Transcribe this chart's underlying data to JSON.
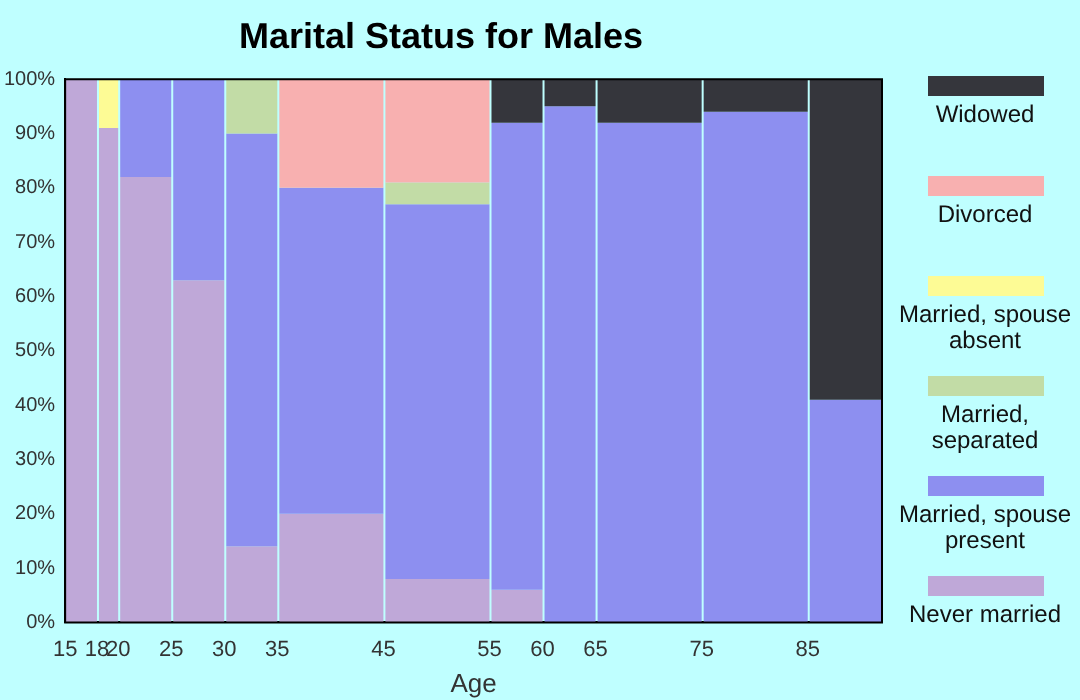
{
  "chart_data": {
    "type": "bar",
    "stacked": true,
    "title": "Marital Status for Males",
    "xlabel": "Age",
    "x": [
      16.5,
      19,
      22.5,
      27.5,
      32.5,
      40,
      50,
      57.5,
      62.5,
      70,
      80,
      88.5
    ],
    "xlim": [
      15,
      92
    ],
    "xticks": [
      15,
      18,
      20,
      25,
      30,
      35,
      45,
      55,
      60,
      65,
      75,
      85
    ],
    "ylim": [
      0,
      100
    ],
    "yticks": [
      {
        "value": 0,
        "label": "0%"
      },
      {
        "value": 10,
        "label": "10%"
      },
      {
        "value": 20,
        "label": "20%"
      },
      {
        "value": 30,
        "label": "30%"
      },
      {
        "value": 40,
        "label": "40%"
      },
      {
        "value": 50,
        "label": "50%"
      },
      {
        "value": 60,
        "label": "60%"
      },
      {
        "value": 70,
        "label": "70%"
      },
      {
        "value": 80,
        "label": "80%"
      },
      {
        "value": 90,
        "label": "90%"
      },
      {
        "value": 100,
        "label": "100%"
      }
    ],
    "legend": "right",
    "series": [
      {
        "name": "Never married",
        "color": "#bfa8d8",
        "values": [
          100,
          91,
          82,
          63,
          14,
          20,
          8,
          6,
          0,
          0,
          0,
          0
        ]
      },
      {
        "name": "Married, spouse present",
        "color": "#8d8ff0",
        "values": [
          0,
          0,
          18,
          37,
          76,
          60,
          69,
          86,
          95,
          92,
          94,
          41
        ]
      },
      {
        "name": "Married, separated",
        "color": "#c2dca6",
        "values": [
          0,
          0,
          0,
          0,
          10,
          0,
          4,
          0,
          0,
          0,
          0,
          0
        ]
      },
      {
        "name": "Married, spouse absent",
        "color": "#fdfb95",
        "values": [
          0,
          9,
          0,
          0,
          0,
          0,
          0,
          0,
          0,
          0,
          0,
          0
        ]
      },
      {
        "name": "Divorced",
        "color": "#f8b0b0",
        "values": [
          0,
          0,
          0,
          0,
          0,
          20,
          19,
          0,
          0,
          0,
          0,
          0
        ]
      },
      {
        "name": "Widowed",
        "color": "#35363c",
        "values": [
          0,
          0,
          0,
          0,
          0,
          0,
          0,
          8,
          5,
          8,
          6,
          59
        ]
      }
    ]
  }
}
